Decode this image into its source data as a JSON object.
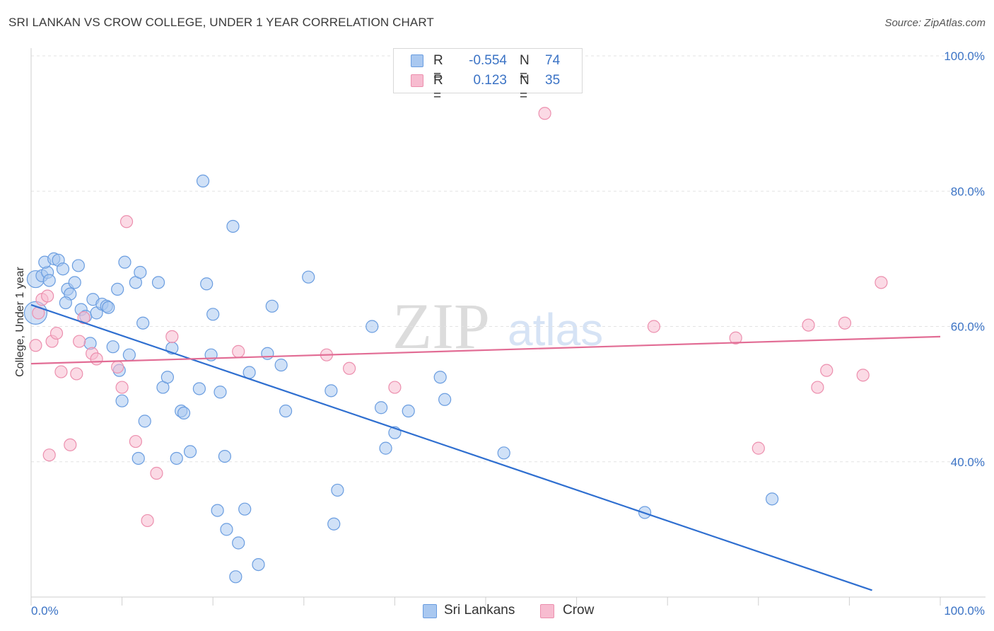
{
  "header": {
    "title": "SRI LANKAN VS CROW COLLEGE, UNDER 1 YEAR CORRELATION CHART",
    "source": "Source: ZipAtlas.com"
  },
  "watermark": {
    "zip": "ZIP",
    "atlas": "atlas"
  },
  "legend": {
    "rows": [
      {
        "r_label": "R =",
        "r_value": "-0.554",
        "n_label": "N =",
        "n_value": "74"
      },
      {
        "r_label": "R =",
        "r_value": "0.123",
        "n_label": "N =",
        "n_value": "35"
      }
    ]
  },
  "bottom_legend": {
    "series1": "Sri Lankans",
    "series2": "Crow"
  },
  "colors": {
    "sri_lankans_fill": "#a9c8f0",
    "sri_lankans_stroke": "#6a9de0",
    "sri_lankans_line": "#2f6fd0",
    "crow_fill": "#f7bcd0",
    "crow_stroke": "#ec8fae",
    "crow_line": "#e26d95",
    "axis_label": "#3b73c5"
  },
  "chart_data": {
    "type": "scatter",
    "title": "SRI LANKAN VS CROW COLLEGE, UNDER 1 YEAR CORRELATION CHART",
    "xlabel": "",
    "ylabel": "College, Under 1 year",
    "xlim": [
      0,
      100
    ],
    "ylim": [
      20,
      100
    ],
    "x_tick_labels": [
      "0.0%",
      "100.0%"
    ],
    "y_tick_labels": [
      "40.0%",
      "60.0%",
      "80.0%",
      "100.0%"
    ],
    "y_ticks": [
      40,
      60,
      80,
      100
    ],
    "grid": "horizontal dashed",
    "legend_position": "top-center",
    "series": [
      {
        "name": "Sri Lankans",
        "r": -0.554,
        "n": 74,
        "trend": {
          "x": [
            0,
            92.5
          ],
          "y": [
            63.2,
            21
          ]
        },
        "points": [
          [
            0.5,
            62.0
          ],
          [
            0.5,
            67.0
          ],
          [
            1.2,
            67.5
          ],
          [
            1.8,
            68.0
          ],
          [
            1.5,
            69.5
          ],
          [
            2.5,
            70.0
          ],
          [
            3.0,
            69.8
          ],
          [
            3.5,
            68.5
          ],
          [
            4.0,
            65.5
          ],
          [
            4.3,
            64.8
          ],
          [
            4.8,
            66.5
          ],
          [
            5.2,
            69.0
          ],
          [
            5.5,
            62.5
          ],
          [
            6.0,
            61.5
          ],
          [
            6.5,
            57.5
          ],
          [
            6.8,
            64.0
          ],
          [
            7.2,
            62.0
          ],
          [
            7.8,
            63.3
          ],
          [
            8.3,
            63.0
          ],
          [
            8.5,
            62.8
          ],
          [
            9.0,
            57.0
          ],
          [
            9.5,
            65.5
          ],
          [
            9.7,
            53.5
          ],
          [
            10.0,
            49.0
          ],
          [
            10.3,
            69.5
          ],
          [
            10.8,
            55.8
          ],
          [
            11.5,
            66.5
          ],
          [
            12.0,
            68.0
          ],
          [
            12.5,
            46.0
          ],
          [
            11.8,
            40.5
          ],
          [
            14.0,
            66.5
          ],
          [
            14.5,
            51.0
          ],
          [
            15.0,
            52.5
          ],
          [
            15.5,
            56.8
          ],
          [
            16.0,
            40.5
          ],
          [
            16.5,
            47.5
          ],
          [
            16.8,
            47.2
          ],
          [
            17.5,
            41.5
          ],
          [
            18.5,
            50.8
          ],
          [
            18.9,
            81.5
          ],
          [
            19.3,
            66.3
          ],
          [
            19.8,
            55.8
          ],
          [
            20.0,
            61.8
          ],
          [
            20.5,
            32.8
          ],
          [
            20.8,
            50.3
          ],
          [
            21.3,
            40.8
          ],
          [
            21.5,
            30.0
          ],
          [
            22.2,
            74.8
          ],
          [
            22.5,
            23.0
          ],
          [
            22.8,
            28.0
          ],
          [
            23.5,
            33.0
          ],
          [
            24.0,
            53.2
          ],
          [
            25.0,
            24.8
          ],
          [
            26.0,
            56.0
          ],
          [
            26.5,
            63.0
          ],
          [
            27.5,
            54.3
          ],
          [
            28.0,
            47.5
          ],
          [
            30.5,
            67.3
          ],
          [
            33.0,
            50.5
          ],
          [
            33.3,
            30.8
          ],
          [
            33.7,
            35.8
          ],
          [
            37.5,
            60.0
          ],
          [
            38.5,
            48.0
          ],
          [
            39.0,
            42.0
          ],
          [
            40.0,
            44.3
          ],
          [
            41.5,
            47.5
          ],
          [
            45.0,
            52.5
          ],
          [
            45.5,
            49.2
          ],
          [
            52.0,
            41.3
          ],
          [
            67.5,
            32.5
          ],
          [
            81.5,
            34.5
          ],
          [
            2.0,
            66.8
          ],
          [
            3.8,
            63.5
          ],
          [
            12.3,
            60.5
          ]
        ]
      },
      {
        "name": "Crow",
        "r": 0.123,
        "n": 35,
        "trend": {
          "x": [
            0,
            100
          ],
          "y": [
            54.5,
            58.5
          ]
        },
        "points": [
          [
            0.5,
            57.2
          ],
          [
            0.8,
            62.0
          ],
          [
            1.2,
            64.0
          ],
          [
            1.8,
            64.5
          ],
          [
            2.3,
            57.8
          ],
          [
            2.8,
            59.0
          ],
          [
            3.3,
            53.3
          ],
          [
            4.3,
            42.5
          ],
          [
            5.0,
            53.0
          ],
          [
            5.3,
            57.8
          ],
          [
            5.8,
            61.3
          ],
          [
            6.7,
            56.0
          ],
          [
            7.2,
            55.2
          ],
          [
            9.5,
            54.0
          ],
          [
            10.0,
            51.0
          ],
          [
            10.5,
            75.5
          ],
          [
            11.5,
            43.0
          ],
          [
            12.8,
            31.3
          ],
          [
            13.8,
            38.3
          ],
          [
            15.5,
            58.5
          ],
          [
            22.8,
            56.3
          ],
          [
            32.5,
            55.8
          ],
          [
            35.0,
            53.8
          ],
          [
            40.0,
            51.0
          ],
          [
            56.5,
            91.5
          ],
          [
            68.5,
            60.0
          ],
          [
            77.5,
            58.3
          ],
          [
            80.0,
            42.0
          ],
          [
            85.5,
            60.2
          ],
          [
            86.5,
            51.0
          ],
          [
            87.5,
            53.5
          ],
          [
            89.5,
            60.5
          ],
          [
            91.5,
            52.8
          ],
          [
            93.5,
            66.5
          ],
          [
            2.0,
            41.0
          ]
        ]
      }
    ]
  }
}
